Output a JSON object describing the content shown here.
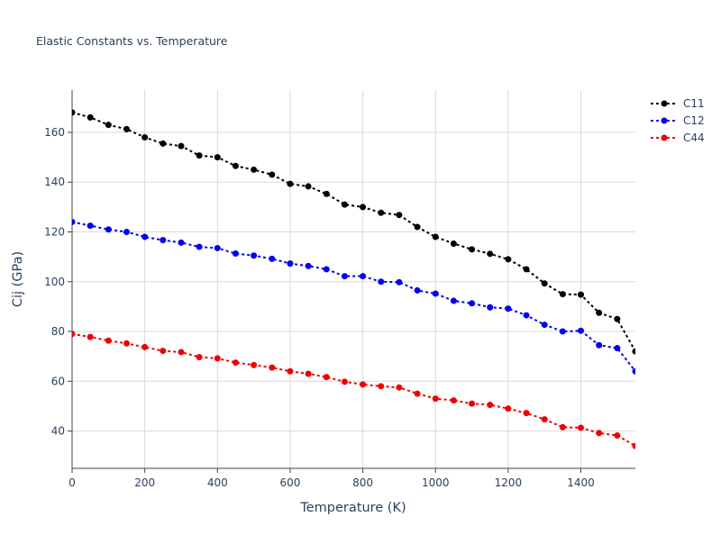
{
  "chart_data": {
    "type": "line",
    "title": "Elastic Constants vs. Temperature",
    "xlabel": "Temperature (K)",
    "ylabel": "Cij (GPa)",
    "xlim": [
      0,
      1550
    ],
    "ylim": [
      25,
      177
    ],
    "xticks": [
      0,
      200,
      400,
      600,
      800,
      1000,
      1200,
      1400
    ],
    "yticks": [
      40,
      60,
      80,
      100,
      120,
      140,
      160
    ],
    "grid": true,
    "legend_position": "top-right",
    "x": [
      0,
      50,
      100,
      150,
      200,
      250,
      300,
      350,
      400,
      450,
      500,
      550,
      600,
      650,
      700,
      750,
      800,
      850,
      900,
      950,
      1000,
      1050,
      1100,
      1150,
      1200,
      1250,
      1300,
      1350,
      1400,
      1450,
      1500,
      1550
    ],
    "series": [
      {
        "name": "C11",
        "color": "#000000",
        "values": [
          168.0,
          166.0,
          163.0,
          161.3,
          158.0,
          155.5,
          154.5,
          150.7,
          150.0,
          146.5,
          145.0,
          143.0,
          139.3,
          138.3,
          135.3,
          131.0,
          130.0,
          127.7,
          126.8,
          122.0,
          118.0,
          115.3,
          113.0,
          111.2,
          109.0,
          105.0,
          99.3,
          95.0,
          94.8,
          87.5,
          85.0,
          72.0
        ]
      },
      {
        "name": "C12",
        "color": "#0000ee",
        "values": [
          124.0,
          122.5,
          121.0,
          120.0,
          118.0,
          116.7,
          115.7,
          114.0,
          113.5,
          111.3,
          110.5,
          109.2,
          107.3,
          106.3,
          105.0,
          102.2,
          102.2,
          100.0,
          99.8,
          96.5,
          95.2,
          92.3,
          91.3,
          89.7,
          89.2,
          86.5,
          82.7,
          80.0,
          80.3,
          74.5,
          73.3,
          64.0
        ]
      },
      {
        "name": "C44",
        "color": "#ee0000",
        "values": [
          79.0,
          77.8,
          76.3,
          75.2,
          73.7,
          72.2,
          71.7,
          69.7,
          69.2,
          67.5,
          66.5,
          65.5,
          64.0,
          63.0,
          61.7,
          59.8,
          58.7,
          58.0,
          57.5,
          55.0,
          53.0,
          52.3,
          51.0,
          50.5,
          49.0,
          47.2,
          44.7,
          41.5,
          41.3,
          39.2,
          38.2,
          34.0
        ]
      }
    ]
  }
}
